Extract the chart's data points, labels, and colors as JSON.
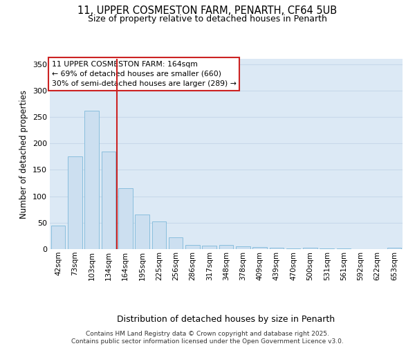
{
  "title_line1": "11, UPPER COSMESTON FARM, PENARTH, CF64 5UB",
  "title_line2": "Size of property relative to detached houses in Penarth",
  "xlabel": "Distribution of detached houses by size in Penarth",
  "ylabel": "Number of detached properties",
  "categories": [
    "42sqm",
    "73sqm",
    "103sqm",
    "134sqm",
    "164sqm",
    "195sqm",
    "225sqm",
    "256sqm",
    "286sqm",
    "317sqm",
    "348sqm",
    "378sqm",
    "409sqm",
    "439sqm",
    "470sqm",
    "500sqm",
    "531sqm",
    "561sqm",
    "592sqm",
    "622sqm",
    "653sqm"
  ],
  "values": [
    44,
    176,
    262,
    185,
    115,
    65,
    52,
    22,
    8,
    6,
    8,
    5,
    4,
    2,
    1,
    3,
    1,
    1,
    0,
    0,
    2
  ],
  "bar_color": "#ccdff0",
  "bar_edge_color": "#7db8da",
  "vline_index": 4,
  "vline_color": "#cc2222",
  "annotation_line1": "11 UPPER COSMESTON FARM: 164sqm",
  "annotation_line2": "← 69% of detached houses are smaller (660)",
  "annotation_line3": "30% of semi-detached houses are larger (289) →",
  "annotation_box_facecolor": "#ffffff",
  "annotation_box_edgecolor": "#cc2222",
  "ylim_max": 360,
  "yticks": [
    0,
    50,
    100,
    150,
    200,
    250,
    300,
    350
  ],
  "grid_color": "#c8d8ea",
  "plot_bg_color": "#dce9f5",
  "footer_line1": "Contains HM Land Registry data © Crown copyright and database right 2025.",
  "footer_line2": "Contains public sector information licensed under the Open Government Licence v3.0."
}
